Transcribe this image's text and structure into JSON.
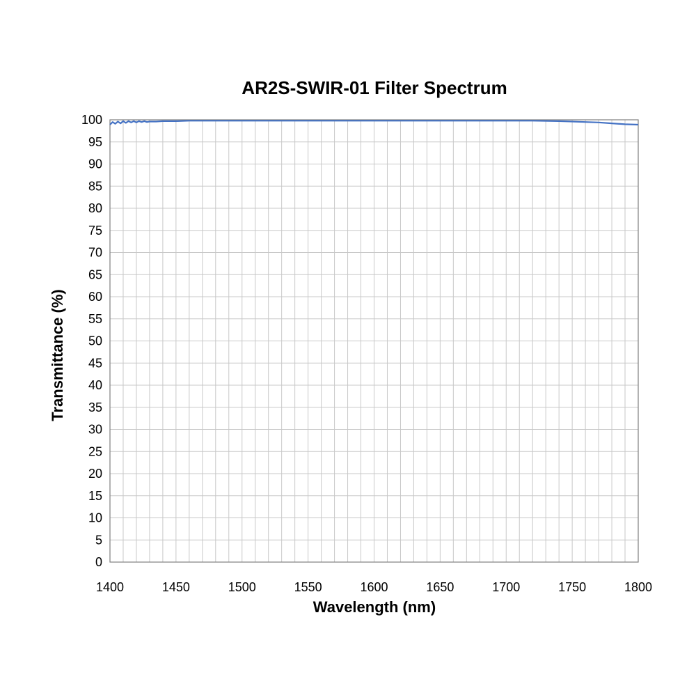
{
  "chart_data": {
    "type": "line",
    "title": "AR2S-SWIR-01 Filter Spectrum",
    "xlabel": "Wavelength (nm)",
    "ylabel": "Transmittance (%)",
    "xlim": [
      1400,
      1800
    ],
    "ylim": [
      0,
      100
    ],
    "x_ticks": [
      1400,
      1450,
      1500,
      1550,
      1600,
      1650,
      1700,
      1750,
      1800
    ],
    "y_ticks": [
      0,
      5,
      10,
      15,
      20,
      25,
      30,
      35,
      40,
      45,
      50,
      55,
      60,
      65,
      70,
      75,
      80,
      85,
      90,
      95,
      100
    ],
    "x_minor_step": 10,
    "grid": true,
    "legend": "none",
    "series": [
      {
        "color": "#4472c4",
        "x": [
          1400,
          1402,
          1404,
          1406,
          1408,
          1410,
          1412,
          1414,
          1416,
          1418,
          1420,
          1422,
          1424,
          1426,
          1428,
          1430,
          1435,
          1440,
          1450,
          1460,
          1470,
          1480,
          1490,
          1500,
          1520,
          1540,
          1560,
          1580,
          1600,
          1620,
          1640,
          1660,
          1680,
          1700,
          1720,
          1740,
          1750,
          1760,
          1770,
          1780,
          1790,
          1800
        ],
        "y": [
          98.9,
          99.5,
          99.1,
          99.6,
          99.2,
          99.7,
          99.3,
          99.7,
          99.4,
          99.7,
          99.4,
          99.7,
          99.5,
          99.7,
          99.5,
          99.6,
          99.6,
          99.7,
          99.7,
          99.8,
          99.8,
          99.8,
          99.8,
          99.8,
          99.8,
          99.8,
          99.8,
          99.8,
          99.8,
          99.8,
          99.8,
          99.8,
          99.8,
          99.8,
          99.8,
          99.7,
          99.6,
          99.5,
          99.4,
          99.2,
          99.0,
          98.9
        ]
      }
    ]
  }
}
